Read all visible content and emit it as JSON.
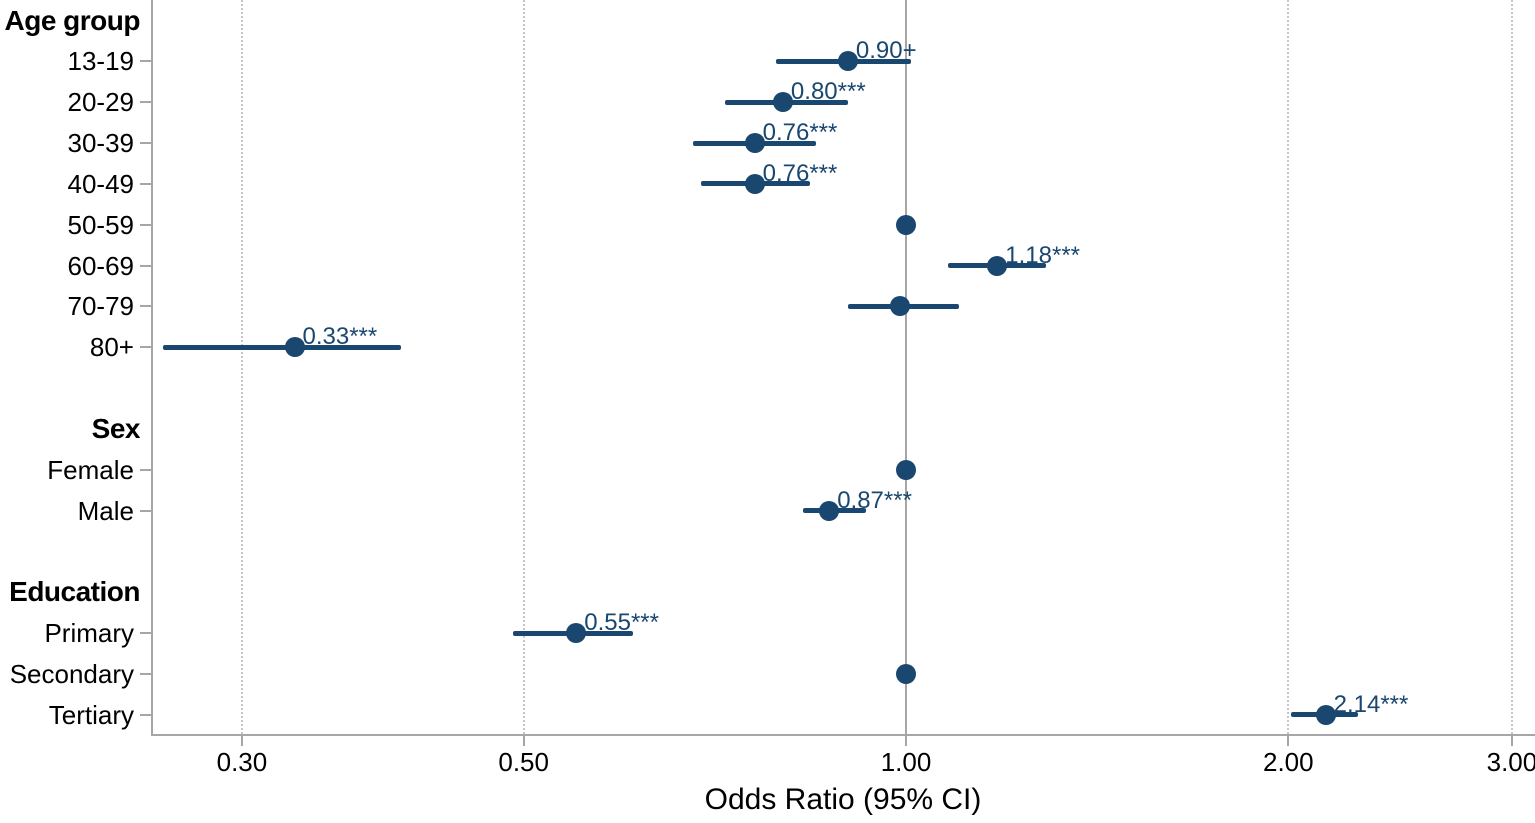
{
  "chart_data": {
    "type": "forest",
    "title": "",
    "xlabel": "Odds Ratio (95% CI)",
    "ylabel": "",
    "x_scale": "log",
    "x_range": [
      0.25,
      3.15
    ],
    "x_ticks": [
      0.3,
      0.5,
      1.0,
      2.0,
      3.0
    ],
    "x_tick_labels": [
      "0.30",
      "0.50",
      "1.00",
      "2.00",
      "3.00"
    ],
    "reference_line": 1.0,
    "grid": "vertical-dotted-at-ticks",
    "legend_position": "none",
    "colors": {
      "estimate": "#1A476F",
      "annotation": "#1A476F",
      "axis": "#A6A6A6",
      "gridline": "#C6C6C6",
      "text": "#000000"
    },
    "groups": [
      {
        "name": "Age group",
        "items": [
          {
            "label": "13-19",
            "or": 0.9,
            "ci": [
              0.79,
              1.01
            ],
            "annotation": "0.90+"
          },
          {
            "label": "20-29",
            "or": 0.8,
            "ci": [
              0.72,
              0.9
            ],
            "annotation": "0.80***"
          },
          {
            "label": "30-39",
            "or": 0.76,
            "ci": [
              0.68,
              0.85
            ],
            "annotation": "0.76***"
          },
          {
            "label": "40-49",
            "or": 0.76,
            "ci": [
              0.69,
              0.84
            ],
            "annotation": "0.76***"
          },
          {
            "label": "50-59",
            "or": 1.0,
            "ci": null,
            "annotation": "",
            "reference": true
          },
          {
            "label": "60-69",
            "or": 1.18,
            "ci": [
              1.08,
              1.29
            ],
            "annotation": "1.18***"
          },
          {
            "label": "70-79",
            "or": 0.99,
            "ci": [
              0.9,
              1.1
            ],
            "annotation": ""
          },
          {
            "label": "80+",
            "or": 0.33,
            "ci": [
              0.26,
              0.4
            ],
            "annotation": "0.33***"
          }
        ]
      },
      {
        "name": "Sex",
        "items": [
          {
            "label": "Female",
            "or": 1.0,
            "ci": null,
            "annotation": "",
            "reference": true
          },
          {
            "label": "Male",
            "or": 0.87,
            "ci": [
              0.83,
              0.93
            ],
            "annotation": "0.87***"
          }
        ]
      },
      {
        "name": "Education",
        "items": [
          {
            "label": "Primary",
            "or": 0.55,
            "ci": [
              0.49,
              0.61
            ],
            "annotation": "0.55***"
          },
          {
            "label": "Secondary",
            "or": 1.0,
            "ci": null,
            "annotation": "",
            "reference": true
          },
          {
            "label": "Tertiary",
            "or": 2.14,
            "ci": [
              2.01,
              2.27
            ],
            "annotation": "2.14***"
          }
        ]
      }
    ]
  }
}
